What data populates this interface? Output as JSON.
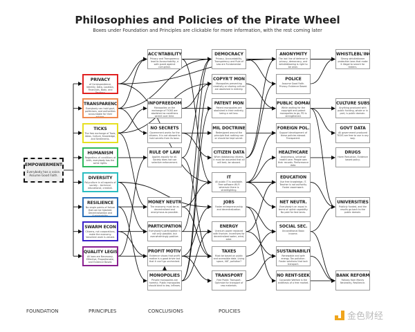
{
  "header": {
    "title": "Philosophies and Policies of the Pirate Wheel",
    "subtitle": "Boxes under Foundation and Principles are clickable for more information, with the rest coming later"
  },
  "foundation": {
    "title": "EMPOWERMENT",
    "desc": "Everybody has a voice. Assume Good Faith."
  },
  "principles": [
    {
      "title": "PRIVACY",
      "desc": "of Correspondence, Identity, Data, Location, Financials, Body, and Territory.",
      "color": "#e02020"
    },
    {
      "title": "TRANSPARENCY",
      "desc": "Everybody can hold govt, politicians, and authorities accountable for their actions.",
      "color": "#f08a50"
    },
    {
      "title": "TICKS",
      "desc": "The free exchange of Tools, Ideas, Culture, Knowledge, and Sentiments.",
      "color": "#e6e020"
    },
    {
      "title": "HUMANISM",
      "desc": "Regardless of conditions at birth, everybody has the same rights.",
      "color": "#2cb85c"
    },
    {
      "title": "DIVERSITY",
      "desc": "Polyculture in all aspects of society – technical, educational, creative.",
      "color": "#2bbcc0"
    },
    {
      "title": "RESILIENCE",
      "desc": "No single points of failure that can be hijacked. Decentralization and Sustainability.",
      "color": "#2a6fb8"
    },
    {
      "title": "SWARM ECON",
      "desc": "Citizens, not corporations, make the economy. Volunteer work is valued.",
      "color": "#3a20c8"
    },
    {
      "title": "QUALITY LEGISL",
      "desc": "All laws are Necessary, Effective, Proportionate, and Evidence Based.",
      "color": "#8a2090"
    }
  ],
  "conclusions": [
    {
      "title": "ACC'NTABILITY",
      "desc": "Privacy and Transparency lead to Accountability, a safe guard against corruption."
    },
    {
      "title": "INFOFREEDOM",
      "desc": "Monopolies on the exchange of TICKS are abolished as conditions permit over time."
    },
    {
      "title": "NO SECRETS",
      "desc": "Government works for the citizens. It is not allowed to hold secrets from its boss."
    },
    {
      "title": "RULE OF LAW",
      "desc": "Applies equally for all. Society does not use selective enforcement."
    },
    {
      "title": "MONEY NEUTR.",
      "desc": "The economy must be as decentralized and anonymous as possible."
    },
    {
      "title": "PARTICIPATION",
      "desc": "Everybody's participation is not only possible, but overwhelmingly positive."
    },
    {
      "title": "PROFIT MOTIVE",
      "desc": "Evidence shows that profit motive is a good driver but that it can't go unchecked."
    },
    {
      "title": "MONOPOLIES",
      "desc": "Private monopolies are harmful. Public monopolies should bind to law, inflexes."
    }
  ],
  "policies": [
    {
      "title": "DEMOCRACY",
      "desc": "Privacy, Accountability, Transparency and Rule of Law are Fundamental."
    },
    {
      "title": "COPYR'T MON",
      "desc": "Monopolies preventing creativity or sharing culture are abolished in entirety."
    },
    {
      "title": "PATENT MON",
      "desc": "Patent monopolies are abolished in their entirety, being a net loss."
    },
    {
      "title": "MIL DOCTRINE",
      "desc": "Redesigned around the principle that nothing can or should be kept secret."
    },
    {
      "title": "CITIZEN DATA",
      "desc": "When databasing citizens, it must be assumed that all will leak, be abused."
    },
    {
      "title": "IT",
      "desc": "All public IT is available. Free software Wi-Fi wherever there is streetlighting."
    },
    {
      "title": "JOBS",
      "desc": "Foster entrepreneurship and decentralization."
    },
    {
      "title": "ENERGY",
      "desc": "Uranium power replaced with thorium. Incentives for decentralized water, wind, solar."
    },
    {
      "title": "TAXES",
      "desc": "Must be based on public and accessible data. Living space, VAT, pollution?"
    },
    {
      "title": "TRANSPORT",
      "desc": "Free Public Transport. Optimize for transport of raw materials."
    }
  ],
  "policies2": [
    {
      "title": "ANONYMITY",
      "desc": "The last line of defense in privacy, democracy, and whistleblowing is right to be anon."
    },
    {
      "title": "POLICE",
      "desc": "Assume Good Faith. Privacy. Evidence Based."
    },
    {
      "title": "PUBLIC DOMAIN",
      "desc": "While waiting for the copyright and patent monopolies to go, PD is strengthened."
    },
    {
      "title": "FOREIGN POL.",
      "desc": "Support development of these policies abroad. Transparent."
    },
    {
      "title": "HEALTHCARE",
      "desc": "Anonymous, universal health care. People own their records. Performance data."
    },
    {
      "title": "EDUCATION",
      "desc": "Use free knowledge, IT. Teacher is not authority. Foster swarmwork."
    },
    {
      "title": "NET NEUTR.",
      "desc": "Everybody's an equal in terms of uplink capability. No paid for fast lanes."
    },
    {
      "title": "SOCIAL SEC.",
      "desc": "Unconditional Basic Income."
    },
    {
      "title": "SUSTAINABILITY",
      "desc": "Renewable and safe energy. Tax pollution. Foster solutions that lack transport."
    },
    {
      "title": "NO RENT-SEEK",
      "desc": "Corporate Welfare is the antithesis of a free market."
    }
  ],
  "policies3": [
    {
      "title": "WHISTLEBL'ING",
      "desc": "Strong whistleblower protection laws that make it illegal to search for leakers."
    },
    {
      "title": "CULTURE SUBS.",
      "desc": "Anything produced with public funding, whole or in part, is public domain."
    },
    {
      "title": "GOVT DATA",
      "desc": "All government produced TICKS are free to use in any way."
    },
    {
      "title": "DRUGS",
      "desc": "Harm Reduction. Evidence based policy."
    },
    {
      "title": "UNIVERSITIES",
      "desc": "Publicly funded, and the results go back to the public domain."
    },
    {
      "title": "BANK REFORM",
      "desc": "Follows from Money Neutrality, Resilience."
    }
  ],
  "column_labels": {
    "foundation": "FOUNDATION",
    "principles": "PRINCIPLES",
    "conclusions": "CONCLUSIONS",
    "policies": "POLICIES"
  },
  "watermark": {
    "text": "金色财经",
    "color": "#f0a51c"
  }
}
